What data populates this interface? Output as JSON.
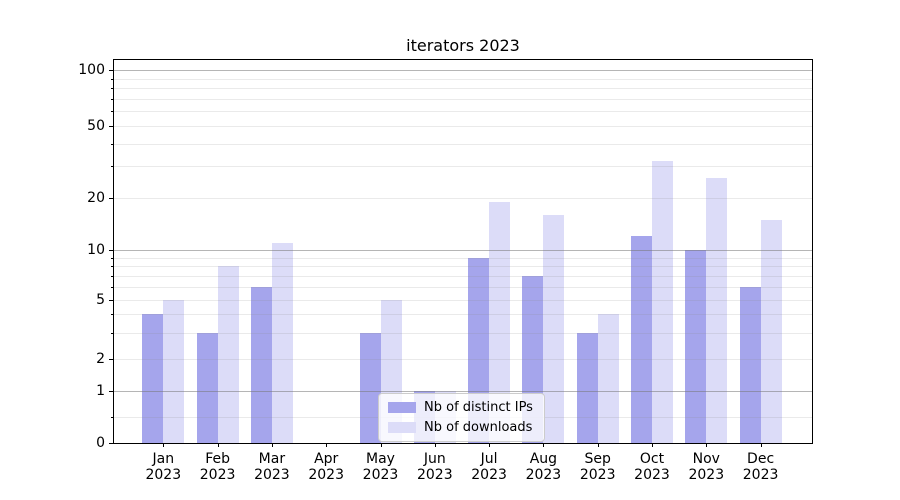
{
  "title": "iterators 2023",
  "legend": {
    "items": [
      {
        "label": "Nb of distinct IPs",
        "color": "#a5a5ec"
      },
      {
        "label": "Nb of downloads",
        "color": "#dcdcf8"
      }
    ]
  },
  "chart_data": {
    "type": "bar",
    "title": "iterators 2023",
    "categories": [
      "Jan 2023",
      "Feb 2023",
      "Mar 2023",
      "Apr 2023",
      "May 2023",
      "Jun 2023",
      "Jul 2023",
      "Aug 2023",
      "Sep 2023",
      "Oct 2023",
      "Nov 2023",
      "Dec 2023"
    ],
    "series": [
      {
        "name": "Nb of distinct IPs",
        "color": "#a5a5ec",
        "values": [
          4,
          3,
          6,
          0,
          3,
          1,
          9,
          7,
          3,
          12,
          10,
          6
        ]
      },
      {
        "name": "Nb of downloads",
        "color": "#dcdcf8",
        "values": [
          5,
          8,
          11,
          0,
          5,
          1,
          19,
          16,
          4,
          32,
          26,
          15
        ]
      }
    ],
    "xlabel": "",
    "ylabel": "",
    "yscale": "symlog-like",
    "ylim": [
      0,
      130
    ],
    "yticks": [
      0,
      1,
      2,
      5,
      10,
      20,
      50,
      100
    ],
    "major_gridline_values": [
      1,
      10,
      100
    ],
    "minor_gridline_values": [
      0.5,
      2,
      3,
      4,
      5,
      6,
      7,
      8,
      9,
      20,
      30,
      40,
      50,
      60,
      70,
      80,
      90
    ],
    "grid": true,
    "legend_position": "lower center"
  }
}
